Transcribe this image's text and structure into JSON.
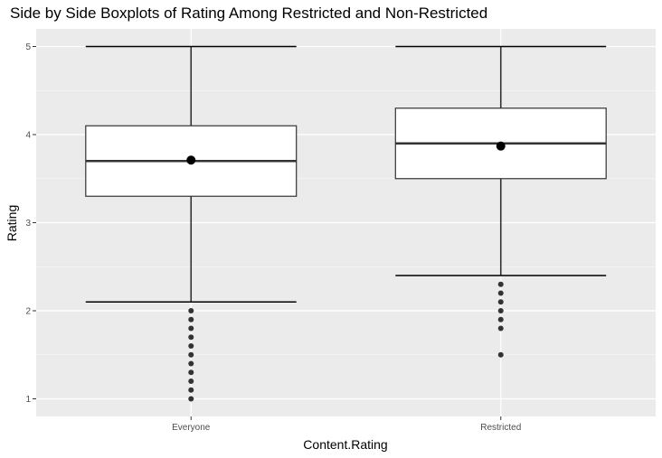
{
  "chart_data": {
    "type": "boxplot",
    "title": "Side by Side Boxplots of Rating Among Restricted and Non-Restricted",
    "xlabel": "Content.Rating",
    "ylabel": "Rating",
    "ylim": [
      0.8,
      5.2
    ],
    "yticks": [
      1,
      2,
      3,
      4,
      5
    ],
    "categories": [
      "Everyone",
      "Restricted"
    ],
    "boxes": [
      {
        "category": "Everyone",
        "whisker_low": 2.1,
        "q1": 3.3,
        "median": 3.7,
        "q3": 4.1,
        "whisker_high": 5.0,
        "mean": 3.71,
        "outliers": [
          2.0,
          1.9,
          1.8,
          1.7,
          1.6,
          1.5,
          1.4,
          1.3,
          1.2,
          1.1,
          1.0
        ]
      },
      {
        "category": "Restricted",
        "whisker_low": 2.4,
        "q1": 3.5,
        "median": 3.9,
        "q3": 4.3,
        "whisker_high": 5.0,
        "mean": 3.87,
        "outliers": [
          2.3,
          2.2,
          2.1,
          2.0,
          1.9,
          1.8,
          1.5
        ]
      }
    ],
    "colors": {
      "panel": "#ebebeb",
      "grid_major": "#ffffff",
      "box_fill": "#ffffff",
      "box_stroke": "#333333",
      "outlier": "#333333",
      "mean_point": "#000000"
    },
    "grid": true,
    "legend": "none"
  }
}
